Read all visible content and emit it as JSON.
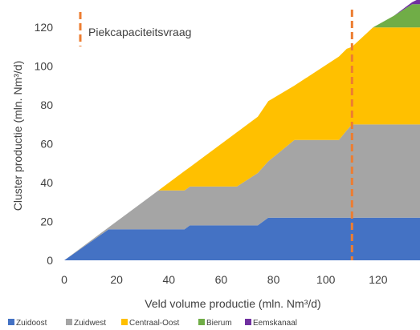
{
  "chart_data": {
    "type": "area",
    "stacked": true,
    "xlabel": "Veld volume productie  (mln. Nm³/d)",
    "ylabel": "Cluster productie (mln. Nm³/d)",
    "xlim": [
      0,
      136
    ],
    "ylim": [
      0,
      130
    ],
    "xticks": [
      0,
      20,
      40,
      60,
      80,
      100,
      120
    ],
    "yticks": [
      0,
      20,
      40,
      60,
      80,
      100,
      120
    ],
    "grid": false,
    "legend_position": "bottom",
    "annotation": {
      "label": "Piekcapaciteitsvraag",
      "x": 110,
      "color": "#ED7D31",
      "style": "dashed"
    },
    "x": [
      0,
      17,
      36,
      46,
      48,
      66,
      74,
      78,
      88,
      105,
      108,
      110,
      118,
      126,
      133,
      136
    ],
    "series": [
      {
        "name": "Zuidoost",
        "color": "#4472C4",
        "values": [
          0,
          16,
          16,
          16,
          18,
          18,
          18,
          22,
          22,
          22,
          22,
          22,
          22,
          22,
          22,
          22
        ]
      },
      {
        "name": "Zuidwest",
        "color": "#A5A5A5",
        "values": [
          0,
          1,
          20,
          20,
          20,
          20,
          27,
          29,
          40,
          40,
          45,
          48,
          48,
          48,
          48,
          48
        ]
      },
      {
        "name": "Centraal-Oost",
        "color": "#FFC000",
        "values": [
          0,
          0,
          0,
          10,
          10,
          28,
          29,
          31,
          28,
          43,
          42,
          40,
          50,
          50,
          50,
          50
        ]
      },
      {
        "name": "Bierum",
        "color": "#70AD47",
        "values": [
          0,
          0,
          0,
          0,
          0,
          0,
          0,
          0,
          0,
          0,
          0,
          0,
          0,
          6,
          12,
          12
        ]
      },
      {
        "name": "Eemskanaal",
        "color": "#7030A0",
        "values": [
          0,
          0,
          0,
          0,
          0,
          0,
          0,
          0,
          0,
          0,
          0,
          0,
          0,
          0,
          1,
          3
        ]
      }
    ]
  }
}
